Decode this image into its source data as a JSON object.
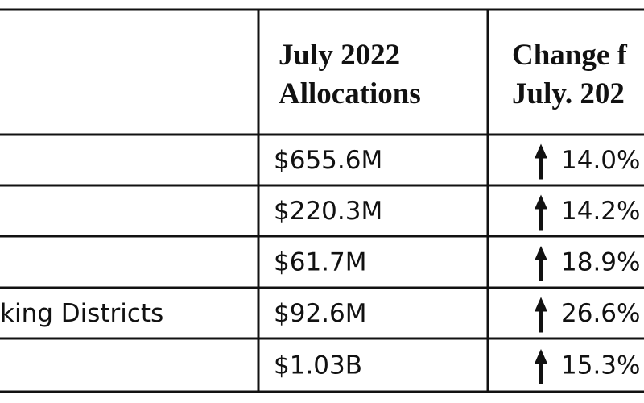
{
  "table": {
    "header": {
      "allocations": [
        "July 2022",
        "Allocations"
      ],
      "change": [
        "Change f",
        "July. 202"
      ]
    },
    "rows": [
      {
        "allocation": "$655.6M",
        "change": "14.0%"
      },
      {
        "allocation": "$220.3M",
        "change": "14.2%"
      },
      {
        "allocation": "$61.7M",
        "change": "18.9%"
      },
      {
        "label": "king Districts",
        "allocation": "$92.6M",
        "change": "26.6%"
      },
      {
        "allocation": "$1.03B",
        "change": "15.3%"
      }
    ]
  }
}
